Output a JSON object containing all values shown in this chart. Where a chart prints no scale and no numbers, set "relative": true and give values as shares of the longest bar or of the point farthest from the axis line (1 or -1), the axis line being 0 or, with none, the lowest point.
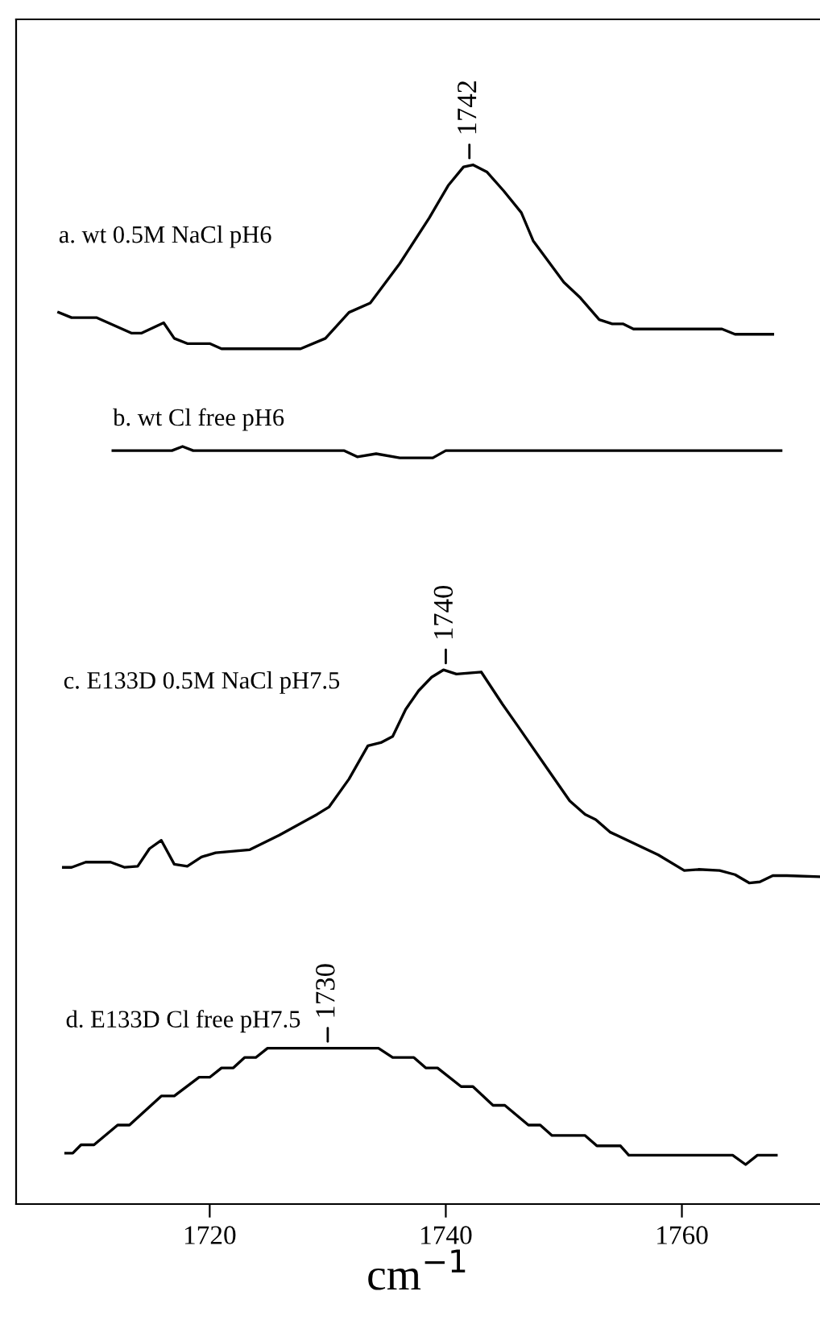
{
  "chart_data": {
    "type": "line",
    "relative": true,
    "xlabel": "cm$^{−1}$",
    "xlim": [
      1703.6,
      1771.7
    ],
    "xticks": [
      1720,
      1740,
      1760
    ],
    "series": [
      {
        "name": "a. wt 0.5M NaCl pH6",
        "color": "#000000",
        "x": [
          1707.2,
          1708.3,
          1710.4,
          1713.4,
          1714.2,
          1716.1,
          1717.0,
          1718.1,
          1720.0,
          1721.0,
          1727.7,
          1729.8,
          1731.8,
          1733.6,
          1736.1,
          1738.6,
          1740.2,
          1741.5,
          1742.3,
          1743.5,
          1744.9,
          1746.4,
          1747.4,
          1750.0,
          1751.4,
          1753.0,
          1754.1,
          1755.0,
          1755.9,
          1763.4,
          1764.5,
          1767.7
        ],
        "values": [
          0.858,
          0.853,
          0.853,
          0.838,
          0.838,
          0.848,
          0.833,
          0.828,
          0.828,
          0.823,
          0.823,
          0.833,
          0.858,
          0.867,
          0.905,
          0.949,
          0.98,
          0.998,
          1.0,
          0.993,
          0.975,
          0.954,
          0.927,
          0.887,
          0.872,
          0.851,
          0.847,
          0.847,
          0.842,
          0.842,
          0.837,
          0.837
        ]
      },
      {
        "name": "b. wt Cl free pH6",
        "color": "#000000",
        "x": [
          1711.8,
          1716.8,
          1717.7,
          1718.6,
          1731.4,
          1732.5,
          1734.1,
          1736.1,
          1738.9,
          1740.0,
          1768.4
        ],
        "values": [
          0.725,
          0.725,
          0.729,
          0.725,
          0.725,
          0.719,
          0.722,
          0.718,
          0.718,
          0.725,
          0.725
        ]
      },
      {
        "name": "c. E133D 0.5M NaCl pH7.5",
        "color": "#000000",
        "x": [
          1707.6,
          1708.3,
          1709.5,
          1711.6,
          1712.8,
          1713.9,
          1714.9,
          1715.9,
          1717.0,
          1718.1,
          1719.3,
          1720.5,
          1723.4,
          1725.9,
          1729.1,
          1730.1,
          1731.8,
          1733.4,
          1734.5,
          1735.5,
          1736.6,
          1737.7,
          1738.8,
          1739.8,
          1740.9,
          1743.0,
          1744.8,
          1746.1,
          1748.6,
          1750.5,
          1751.8,
          1752.7,
          1753.9,
          1758.0,
          1760.2,
          1761.4,
          1763.2,
          1764.5,
          1765.7,
          1766.6,
          1767.7,
          1768.9,
          1771.7
        ],
        "values": [
          0.324,
          0.324,
          0.329,
          0.329,
          0.324,
          0.325,
          0.342,
          0.35,
          0.327,
          0.325,
          0.334,
          0.338,
          0.341,
          0.355,
          0.375,
          0.382,
          0.409,
          0.441,
          0.444,
          0.45,
          0.476,
          0.494,
          0.507,
          0.514,
          0.51,
          0.512,
          0.481,
          0.46,
          0.419,
          0.388,
          0.375,
          0.37,
          0.358,
          0.336,
          0.321,
          0.322,
          0.321,
          0.317,
          0.309,
          0.31,
          0.316,
          0.316,
          0.315
        ]
      },
      {
        "name": "d. E133D Cl free pH7.5",
        "color": "#000000",
        "x": [
          1707.8,
          1708.4,
          1709.1,
          1710.2,
          1712.2,
          1713.2,
          1715.9,
          1717.0,
          1719.1,
          1720.0,
          1721.0,
          1722.0,
          1722.95,
          1723.9,
          1724.9,
          1734.3,
          1735.5,
          1737.3,
          1738.3,
          1739.3,
          1741.3,
          1742.3,
          1744.0,
          1745.0,
          1747.0,
          1748.0,
          1749.0,
          1751.8,
          1752.8,
          1754.8,
          1755.5,
          1764.3,
          1765.4,
          1766.4,
          1768.0
        ],
        "values": [
          0.049,
          0.049,
          0.057,
          0.057,
          0.076,
          0.076,
          0.104,
          0.104,
          0.122,
          0.122,
          0.131,
          0.131,
          0.141,
          0.141,
          0.15,
          0.15,
          0.141,
          0.141,
          0.131,
          0.131,
          0.113,
          0.113,
          0.095,
          0.095,
          0.076,
          0.076,
          0.066,
          0.066,
          0.056,
          0.056,
          0.047,
          0.047,
          0.038,
          0.047,
          0.047
        ]
      }
    ],
    "annotations": [
      {
        "text": "1742",
        "x": 1742,
        "y": 1.0
      },
      {
        "text": "1740",
        "x": 1740,
        "y": 0.514
      },
      {
        "text": "1730",
        "x": 1730,
        "y": 0.15
      }
    ]
  }
}
